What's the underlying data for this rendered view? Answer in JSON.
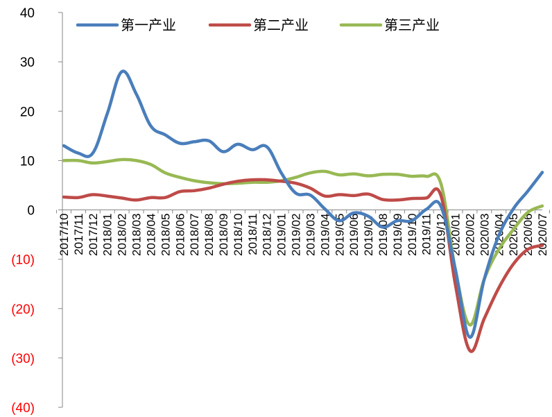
{
  "chart_data": {
    "type": "line",
    "title": "",
    "xlabel": "",
    "ylabel": "",
    "ylim": [
      -40,
      40
    ],
    "yticks": [
      40,
      30,
      20,
      10,
      0,
      -10,
      -20,
      -30,
      -40
    ],
    "ytick_labels": [
      "40",
      "30",
      "20",
      "10",
      "0",
      "(10)",
      "(20)",
      "(30)",
      "(40)"
    ],
    "negative_tick_color": "#ff0000",
    "positive_tick_color": "#000000",
    "grid": false,
    "legend_position": "top",
    "x": [
      "2017/10",
      "2017/11",
      "2017/12",
      "2018/01",
      "2018/02",
      "2018/03",
      "2018/04",
      "2018/05",
      "2018/06",
      "2018/07",
      "2018/08",
      "2018/09",
      "2018/10",
      "2018/11",
      "2018/12",
      "2019/01",
      "2019/02",
      "2019/03",
      "2019/04",
      "2019/05",
      "2019/06",
      "2019/07",
      "2019/08",
      "2019/09",
      "2019/10",
      "2019/11",
      "2019/12",
      "2020/01",
      "2020/02",
      "2020/03",
      "2020/04",
      "2020/05",
      "2020/06",
      "2020/07"
    ],
    "series": [
      {
        "name": "第一产业",
        "color": "#4a7ebb",
        "values": [
          13,
          11.5,
          11.5,
          19.5,
          28,
          23.5,
          17,
          15.2,
          13.5,
          13.8,
          14,
          11.8,
          13.3,
          12.2,
          12.8,
          7.5,
          3.4,
          3,
          0.2,
          -2.2,
          -0.6,
          -1.3,
          -3.5,
          -2.2,
          -2.2,
          0.1,
          0.8,
          -12,
          -25.8,
          -14,
          -5.2,
          0.2,
          3.8,
          7.6
        ]
      },
      {
        "name": "第二产业",
        "color": "#be4b48",
        "values": [
          2.6,
          2.5,
          3.1,
          2.8,
          2.4,
          2.0,
          2.5,
          2.5,
          3.7,
          3.9,
          4.4,
          5.2,
          5.8,
          6.1,
          6.1,
          5.8,
          5.4,
          4.4,
          2.8,
          3.1,
          2.9,
          3.2,
          2.1,
          2.0,
          2.3,
          2.4,
          3.0,
          -15,
          -28.5,
          -22,
          -15.8,
          -11,
          -8,
          -7.2
        ]
      },
      {
        "name": "第三产业",
        "color": "#98b954",
        "values": [
          10,
          10,
          9.5,
          9.8,
          10.2,
          10,
          9.2,
          7.5,
          6.6,
          5.9,
          5.5,
          5.3,
          5.4,
          5.6,
          5.6,
          5.9,
          6.6,
          7.5,
          7.8,
          7.1,
          7.3,
          6.9,
          7.2,
          7.2,
          6.8,
          6.8,
          5.4,
          -12,
          -23.3,
          -14,
          -8,
          -4,
          -0.5,
          0.8
        ]
      }
    ]
  }
}
